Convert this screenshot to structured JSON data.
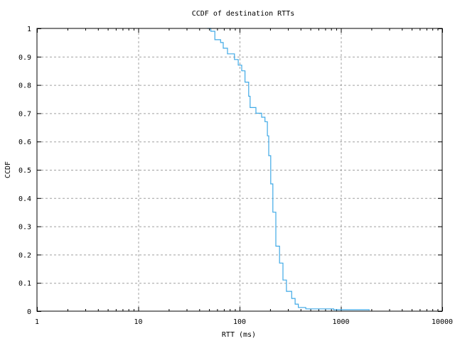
{
  "chart_data": {
    "type": "line",
    "title": "CCDF of destination RTTs",
    "xlabel": "RTT (ms)",
    "ylabel": "CCDF",
    "xscale": "log",
    "xlim": [
      1,
      10000
    ],
    "ylim": [
      0,
      1
    ],
    "grid": true,
    "legend": "none",
    "xticks": [
      1,
      10,
      100,
      1000,
      10000
    ],
    "xtick_labels": [
      "1",
      "10",
      "100",
      "1000",
      "10000"
    ],
    "yticks": [
      0,
      0.1,
      0.2,
      0.3,
      0.4,
      0.5,
      0.6,
      0.7,
      0.8,
      0.9,
      1
    ],
    "ytick_labels": [
      "0",
      "0.1",
      "0.2",
      "0.3",
      "0.4",
      "0.5",
      "0.6",
      "0.7",
      "0.8",
      "0.9",
      "1"
    ],
    "series": [
      {
        "color": "#3fa9e6",
        "x": [
          48,
          52,
          57,
          65,
          69,
          76,
          89,
          97,
          105,
          113,
          123,
          127,
          145,
          165,
          178,
          188,
          194,
          203,
          213,
          228,
          248,
          268,
          290,
          327,
          353,
          380,
          450,
          850,
          1900
        ],
        "y": [
          1.0,
          0.99,
          0.96,
          0.95,
          0.93,
          0.91,
          0.89,
          0.87,
          0.85,
          0.81,
          0.76,
          0.72,
          0.7,
          0.686,
          0.67,
          0.62,
          0.55,
          0.45,
          0.35,
          0.23,
          0.17,
          0.11,
          0.07,
          0.045,
          0.025,
          0.013,
          0.008,
          0.005,
          0.0025
        ]
      }
    ]
  }
}
